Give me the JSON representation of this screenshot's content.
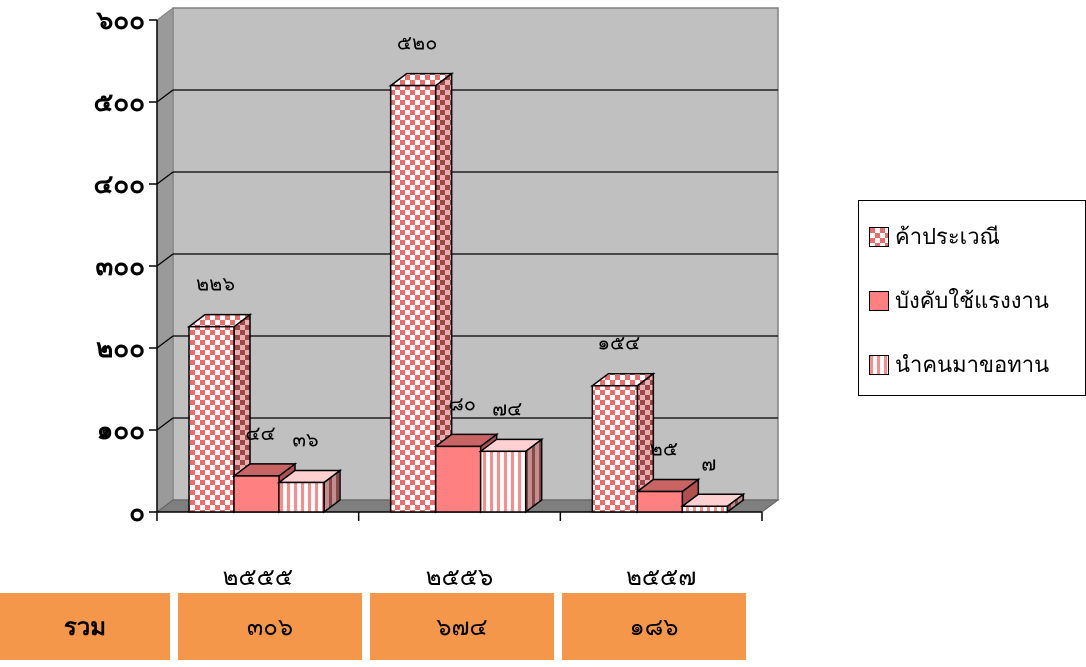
{
  "chart_data": {
    "type": "bar",
    "categories": [
      "๒๕๕๕",
      "๒๕๕๖",
      "๒๕๕๗"
    ],
    "series": [
      {
        "name": "ค้าประเวณี",
        "values": [
          226,
          520,
          154
        ],
        "labels": [
          "๒๒๖",
          "๕๒๐",
          "๑๕๔"
        ],
        "color": "#f08080",
        "pattern": "checker"
      },
      {
        "name": "บังคับใช้แรงงาน",
        "values": [
          44,
          80,
          25
        ],
        "labels": [
          "๔๔",
          "๘๐",
          "๒๕"
        ],
        "color": "#ff8080",
        "pattern": "solid"
      },
      {
        "name": "นำคนมาขอทาน",
        "values": [
          36,
          74,
          7
        ],
        "labels": [
          "๓๖",
          "๗๔",
          "๗"
        ],
        "color": "#ff8080",
        "pattern": "vstripes"
      }
    ],
    "y_ticks": [
      0,
      100,
      200,
      300,
      400,
      500,
      600
    ],
    "y_tick_labels": [
      "๐",
      "๑๐๐",
      "๒๐๐",
      "๓๐๐",
      "๔๐๐",
      "๕๐๐",
      "๖๐๐"
    ],
    "ylim": [
      0,
      600
    ],
    "grid": true,
    "legend_position": "right",
    "title": "",
    "xlabel": "",
    "ylabel": ""
  },
  "summary": {
    "label": "รวม",
    "totals": [
      "๓๐๖",
      "๖๗๔",
      "๑๘๖"
    ]
  }
}
